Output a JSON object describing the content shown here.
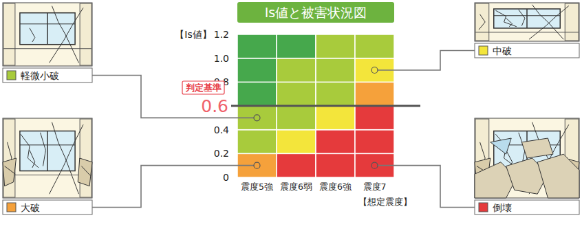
{
  "chart_data": {
    "type": "heatmap",
    "title": "Is値と被害状況図",
    "y_label": "【Is値】",
    "x_label": "【想定震度】",
    "categories": [
      "震度5強",
      "震度6弱",
      "震度6強",
      "震度7"
    ],
    "ylim": [
      0,
      1.2
    ],
    "yticks": [
      0,
      0.2,
      0.4,
      0.8,
      {
        "value": 1,
        "label": "1.0"
      },
      1.2
    ],
    "y_bins": [
      0,
      0.2,
      0.4,
      0.6,
      0.8,
      1,
      1.2
    ],
    "levels": [
      {
        "name": null,
        "color": "#46a84c"
      },
      {
        "name": "軽微小破",
        "color": "#a8cb3c"
      },
      {
        "name": "中破",
        "color": "#f3e53b"
      },
      {
        "name": "大破",
        "color": "#f5a13b"
      },
      {
        "name": "倒壊",
        "color": "#e53a3c"
      }
    ],
    "cells": [
      [
        3,
        4,
        4,
        4
      ],
      [
        1,
        2,
        4,
        4
      ],
      [
        1,
        1,
        2,
        4
      ],
      [
        0,
        1,
        1,
        3
      ],
      [
        0,
        1,
        1,
        2
      ],
      [
        0,
        0,
        1,
        1
      ]
    ],
    "threshold": {
      "value": 0.6,
      "label": "0.6",
      "text": "判定基準"
    },
    "callouts": [
      {
        "level": 1,
        "row": 2,
        "col": 0
      },
      {
        "level": 3,
        "row": 0,
        "col": 0
      },
      {
        "level": 2,
        "row": 4,
        "col": 3
      },
      {
        "level": 4,
        "row": 0,
        "col": 3
      }
    ]
  }
}
